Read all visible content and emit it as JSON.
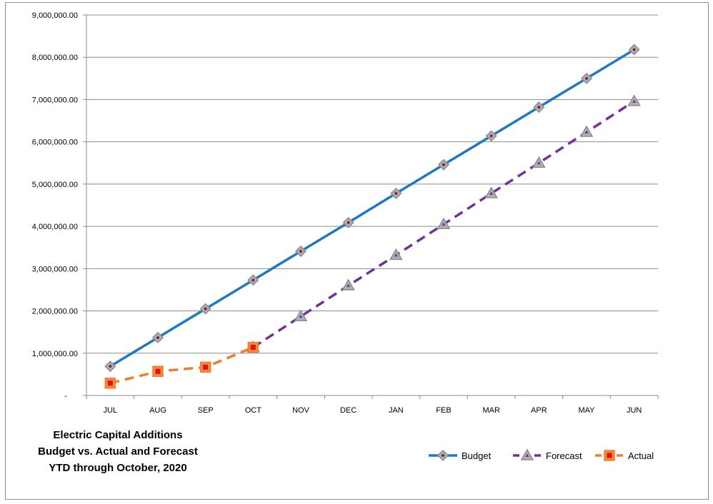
{
  "chart_data": {
    "type": "line",
    "title_lines": [
      "Electric Capital Additions",
      "Budget vs. Actual and Forecast",
      "YTD through October, 2020"
    ],
    "xlabel": "",
    "ylabel": "",
    "categories": [
      "JUL",
      "AUG",
      "SEP",
      "OCT",
      "NOV",
      "DEC",
      "JAN",
      "FEB",
      "MAR",
      "APR",
      "MAY",
      "JUN"
    ],
    "ylim": [
      0,
      9000000
    ],
    "y_ticks": [
      0,
      1000000,
      2000000,
      3000000,
      4000000,
      5000000,
      6000000,
      7000000,
      8000000,
      9000000
    ],
    "y_tick_labels": [
      "-",
      "1,000,000.00",
      "2,000,000.00",
      "3,000,000.00",
      "4,000,000.00",
      "5,000,000.00",
      "6,000,000.00",
      "7,000,000.00",
      "8,000,000.00",
      "9,000,000.00"
    ],
    "grid": true,
    "legend_position": "bottom-right",
    "series": [
      {
        "name": "Budget",
        "color": "#1f78c1",
        "line_style": "solid",
        "marker": "diamond",
        "values": [
          690000,
          1370000,
          2050000,
          2730000,
          3410000,
          4090000,
          4780000,
          5460000,
          6140000,
          6820000,
          7500000,
          8180000
        ]
      },
      {
        "name": "Forecast",
        "color": "#7030a0",
        "line_style": "dashed",
        "marker": "triangle",
        "values": [
          null,
          null,
          null,
          1140000,
          1870000,
          2600000,
          3320000,
          4050000,
          4780000,
          5500000,
          6230000,
          6960000
        ]
      },
      {
        "name": "Actual",
        "color": "#ed7d31",
        "line_style": "dashed",
        "marker": "square",
        "values": [
          290000,
          570000,
          670000,
          1140000,
          null,
          null,
          null,
          null,
          null,
          null,
          null,
          null
        ]
      }
    ]
  }
}
